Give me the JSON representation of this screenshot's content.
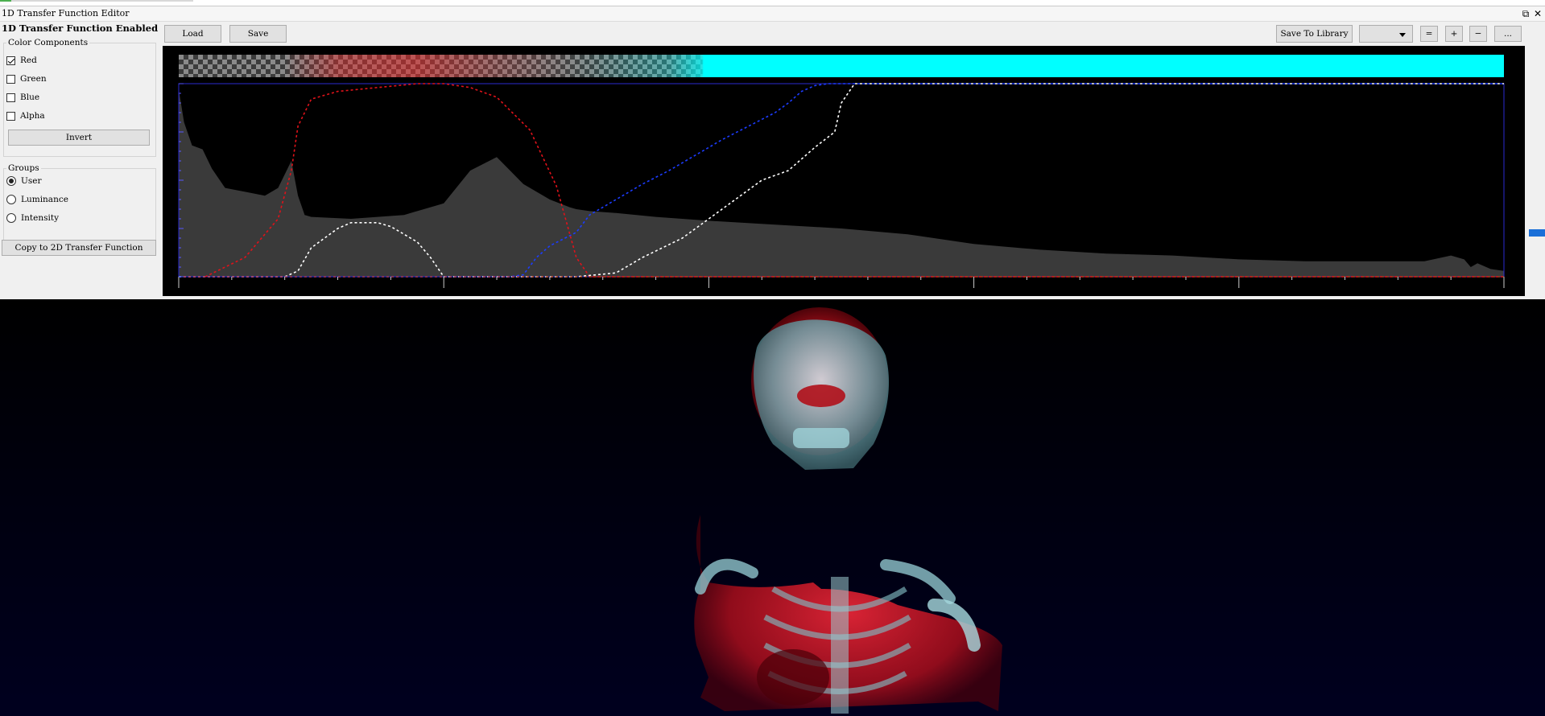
{
  "window": {
    "title": "1D Transfer Function Editor",
    "restore_glyph": "⧉",
    "close_glyph": "✕"
  },
  "left_panel": {
    "enabled_label": "1D Transfer Function Enabled",
    "color_components": {
      "title": "Color Components",
      "items": [
        {
          "label": "Red",
          "checked": true
        },
        {
          "label": "Green",
          "checked": false
        },
        {
          "label": "Blue",
          "checked": false
        },
        {
          "label": "Alpha",
          "checked": false
        }
      ],
      "invert_label": "Invert"
    },
    "groups": {
      "title": "Groups",
      "items": [
        {
          "label": "User",
          "selected": true
        },
        {
          "label": "Luminance",
          "selected": false
        },
        {
          "label": "Intensity",
          "selected": false
        }
      ]
    },
    "copy_button": "Copy to 2D Transfer Function"
  },
  "toolbar": {
    "load_label": "Load",
    "save_label": "Save",
    "save_to_library_label": "Save To Library",
    "library_select_value": "",
    "equal_label": "=",
    "plus_label": "+",
    "minus_label": "−",
    "more_label": "..."
  },
  "colors": {
    "red_curve": "#e0121a",
    "blue_curve": "#1c3cff",
    "alpha_curve": "#ffffff",
    "green_curve": "#1c9e1c",
    "histogram": "#3a3a3a",
    "cyan": "#00ffff",
    "plot_border": "#2a2ad0"
  },
  "chart_data": {
    "type": "area",
    "title": "",
    "xlabel": "",
    "ylabel": "",
    "xlim": [
      0,
      1
    ],
    "ylim": [
      0,
      1
    ],
    "series": [
      {
        "kind": "histogram",
        "x": [
          0,
          0.004,
          0.01,
          0.018,
          0.025,
          0.035,
          0.05,
          0.065,
          0.075,
          0.085,
          0.09,
          0.095,
          0.1,
          0.13,
          0.17,
          0.2,
          0.22,
          0.24,
          0.26,
          0.28,
          0.295,
          0.3,
          0.31,
          0.33,
          0.36,
          0.4,
          0.45,
          0.5,
          0.55,
          0.6,
          0.65,
          0.7,
          0.75,
          0.8,
          0.85,
          0.9,
          0.94,
          0.96,
          0.97,
          0.975,
          0.98,
          0.99,
          1.0
        ],
        "y": [
          0.97,
          0.8,
          0.68,
          0.66,
          0.56,
          0.46,
          0.44,
          0.42,
          0.46,
          0.6,
          0.42,
          0.32,
          0.31,
          0.3,
          0.32,
          0.38,
          0.55,
          0.62,
          0.48,
          0.4,
          0.36,
          0.35,
          0.34,
          0.33,
          0.31,
          0.29,
          0.27,
          0.25,
          0.22,
          0.17,
          0.14,
          0.12,
          0.11,
          0.09,
          0.08,
          0.08,
          0.08,
          0.11,
          0.09,
          0.05,
          0.07,
          0.04,
          0.03
        ]
      },
      {
        "kind": "red",
        "x": [
          0.02,
          0.05,
          0.075,
          0.085,
          0.09,
          0.1,
          0.12,
          0.15,
          0.18,
          0.2,
          0.22,
          0.24,
          0.265,
          0.285,
          0.3,
          0.31,
          1.0
        ],
        "y": [
          0,
          0.1,
          0.3,
          0.55,
          0.78,
          0.92,
          0.96,
          0.98,
          1.0,
          1.0,
          0.98,
          0.93,
          0.76,
          0.47,
          0.1,
          0,
          0
        ]
      },
      {
        "kind": "alpha",
        "x": [
          0,
          0.08,
          0.09,
          0.1,
          0.12,
          0.13,
          0.15,
          0.16,
          0.18,
          0.19,
          0.2,
          0.3,
          0.33,
          0.35,
          0.38,
          0.4,
          0.42,
          0.44,
          0.46,
          0.48,
          0.495,
          0.5,
          0.505,
          0.51,
          0.52,
          1.0
        ],
        "y": [
          0,
          0,
          0.03,
          0.15,
          0.25,
          0.28,
          0.28,
          0.26,
          0.18,
          0.1,
          0,
          0,
          0.02,
          0.1,
          0.2,
          0.3,
          0.4,
          0.5,
          0.55,
          0.67,
          0.75,
          0.9,
          0.95,
          1.0,
          1.0,
          1.0
        ]
      },
      {
        "kind": "blue",
        "x": [
          0,
          0.25,
          0.26,
          0.27,
          0.28,
          0.3,
          0.31,
          0.33,
          0.35,
          0.37,
          0.39,
          0.41,
          0.43,
          0.45,
          0.46,
          0.47,
          0.48,
          0.49,
          0.5,
          1.0
        ],
        "y": [
          0,
          0,
          0.01,
          0.1,
          0.16,
          0.23,
          0.32,
          0.4,
          0.48,
          0.55,
          0.63,
          0.71,
          0.78,
          0.85,
          0.9,
          0.96,
          0.99,
          1.0,
          1.0,
          1.0
        ]
      },
      {
        "kind": "green",
        "x": [
          0,
          1
        ],
        "y": [
          0,
          0
        ]
      }
    ]
  }
}
